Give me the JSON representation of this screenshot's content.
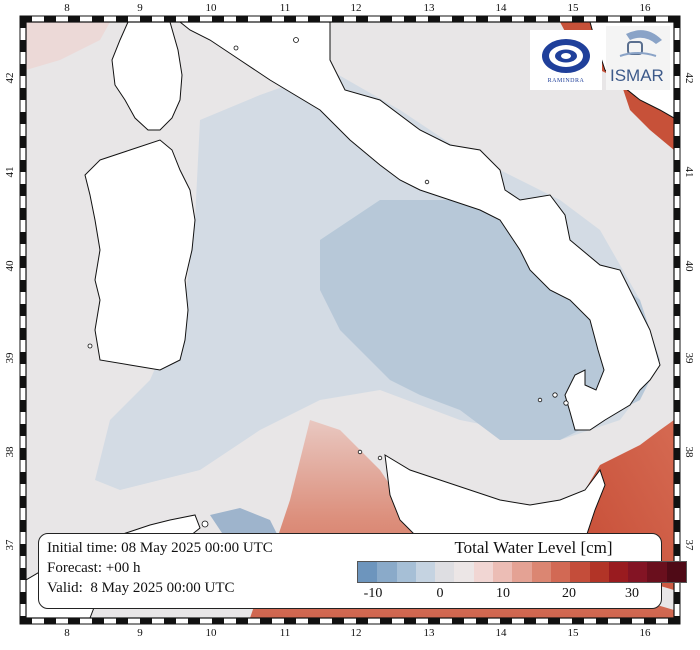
{
  "map": {
    "lon_labels": [
      "8",
      "9",
      "10",
      "11",
      "12",
      "13",
      "14",
      "15",
      "16"
    ],
    "lat_labels": [
      "37",
      "38",
      "39",
      "40",
      "41",
      "42"
    ],
    "land_color": "#ffffff",
    "sea_base_color": "#e7e5e6"
  },
  "info": {
    "initial_time": "Initial time: 08 May 2025 00:00 UTC",
    "forecast": "Forecast: +00 h",
    "valid": "Valid:  8 May 2025 00:00 UTC"
  },
  "legend": {
    "title": "Total Water Level [cm]",
    "tick_labels": [
      "-10",
      "0",
      "10",
      "20",
      "30"
    ],
    "colors": [
      "#6d95bd",
      "#8aaac9",
      "#a6bfd6",
      "#c5d3e1",
      "#dedee2",
      "#ece6e6",
      "#f1d6d3",
      "#ecbdb5",
      "#e4a294",
      "#db8672",
      "#d26954",
      "#c44d3a",
      "#b23427",
      "#991b1f",
      "#831424",
      "#6a0f1d",
      "#4f0a16"
    ]
  },
  "logos": {
    "left": "RAMINDRA",
    "right": "ISMAR"
  }
}
